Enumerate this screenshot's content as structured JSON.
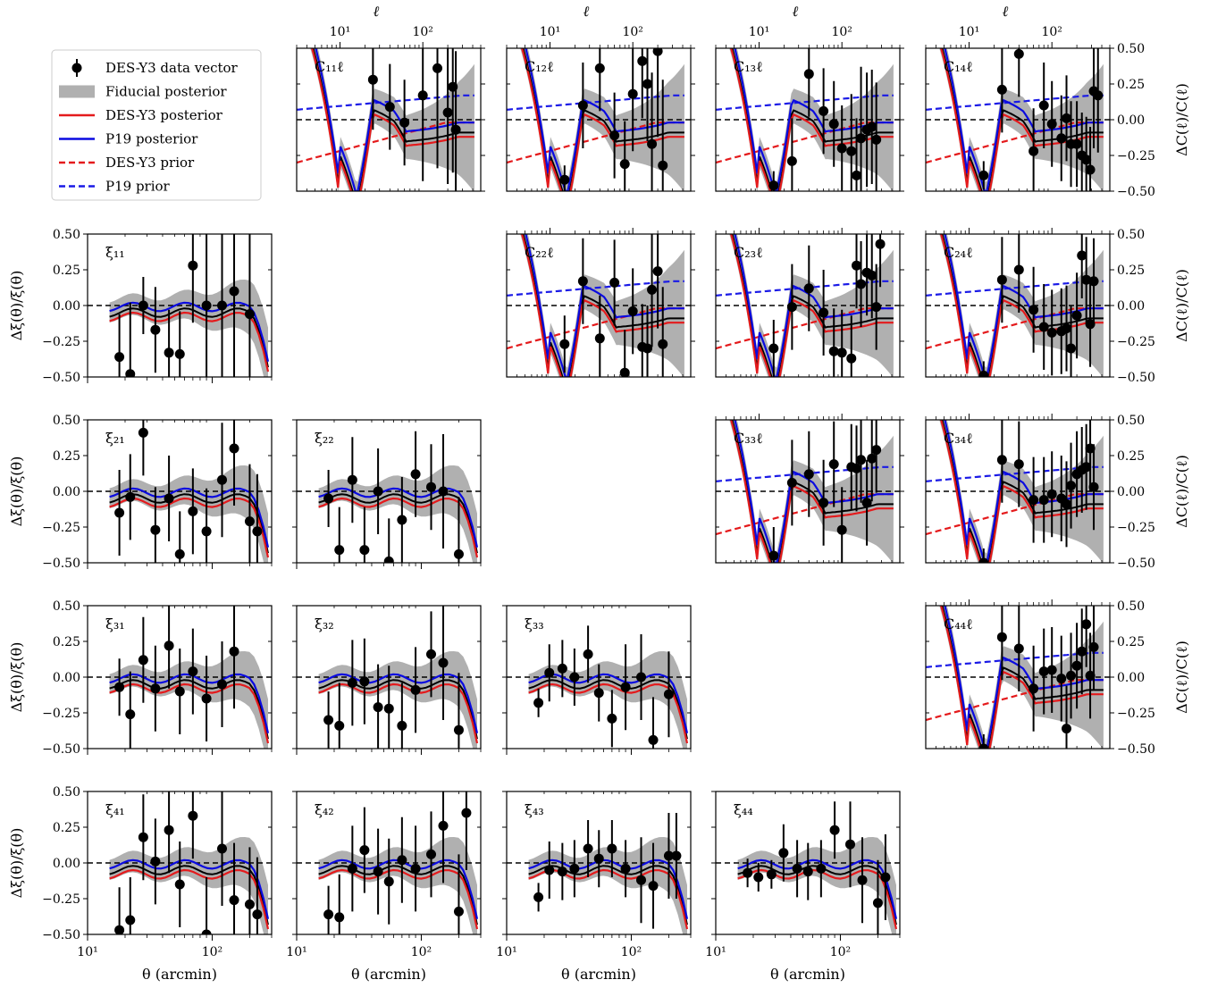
{
  "figure": {
    "colors": {
      "data": "#000000",
      "fiducial": "#b0b0b0",
      "des_post": "#e41a1c",
      "p19_post": "#0a0ae0",
      "des_prior": "#e41a1c",
      "p19_prior": "#1a1ae6"
    }
  },
  "legend": {
    "entries": [
      {
        "key": "data",
        "label": "DES-Y3 data vector"
      },
      {
        "key": "fiducial",
        "label": "Fiducial posterior"
      },
      {
        "key": "des_post",
        "label": "DES-Y3 posterior"
      },
      {
        "key": "p19_post",
        "label": "P19 posterior"
      },
      {
        "key": "des_prior",
        "label": "DES-Y3 prior"
      },
      {
        "key": "p19_prior",
        "label": "P19 prior"
      }
    ]
  },
  "axes_text": {
    "xi_ylabel": "Δξ(θ)/ξ(θ)",
    "cl_ylabel": "ΔC(ℓ)/C(ℓ)",
    "xi_xlabel": "θ (arcmin)",
    "cl_xlabel": "ℓ",
    "y_ticks": [
      "0.50",
      "0.25",
      "0.00",
      "−0.25",
      "−0.50"
    ],
    "x_ticks": [
      "10¹",
      "10²"
    ]
  },
  "chart_data": {
    "type": "scatter",
    "ylim": [
      -0.5,
      0.5
    ],
    "xi_xlim": [
      10,
      300
    ],
    "cl_xlim": [
      3,
      500
    ],
    "panels": [
      {
        "kind": "cl",
        "label": "C₁₁ℓ",
        "row": 0,
        "col": 1,
        "x": [
          25,
          40,
          60,
          100,
          150,
          200,
          230,
          250
        ],
        "y": [
          0.28,
          0.09,
          -0.02,
          0.17,
          0.36,
          0.05,
          0.23,
          -0.07
        ],
        "err": [
          0.35,
          0.3,
          0.3,
          0.6,
          0.7,
          0.5,
          0.6,
          0.55
        ]
      },
      {
        "kind": "cl",
        "label": "C₁₂ℓ",
        "row": 0,
        "col": 2,
        "x": [
          15,
          25,
          40,
          60,
          80,
          100,
          130,
          150,
          170,
          200,
          230
        ],
        "y": [
          -0.42,
          0.1,
          0.36,
          -0.11,
          -0.31,
          0.18,
          0.41,
          0.25,
          -0.17,
          0.48,
          -0.32
        ],
        "err": [
          0.1,
          0.3,
          0.3,
          0.3,
          0.3,
          0.4,
          0.4,
          0.4,
          0.5,
          0.6,
          0.6
        ]
      },
      {
        "kind": "cl",
        "label": "C₁₃ℓ",
        "row": 0,
        "col": 3,
        "x": [
          15,
          25,
          40,
          60,
          80,
          100,
          130,
          150,
          170,
          200,
          230,
          260
        ],
        "y": [
          -0.46,
          -0.29,
          0.32,
          0.06,
          -0.03,
          -0.2,
          -0.22,
          -0.39,
          -0.13,
          -0.07,
          -0.05,
          -0.14
        ],
        "err": [
          0.1,
          0.3,
          0.3,
          0.3,
          0.3,
          0.3,
          0.4,
          0.4,
          0.5,
          0.4,
          0.4,
          0.4
        ]
      },
      {
        "kind": "cl",
        "label": "C₁₄ℓ",
        "row": 0,
        "col": 4,
        "x": [
          15,
          25,
          40,
          60,
          80,
          100,
          130,
          150,
          170,
          200,
          230,
          260,
          290,
          320,
          360
        ],
        "y": [
          -0.39,
          0.21,
          0.46,
          -0.22,
          0.1,
          -0.03,
          -0.13,
          0.01,
          -0.17,
          -0.17,
          -0.25,
          -0.28,
          -0.35,
          0.2,
          0.17
        ],
        "err": [
          0.1,
          0.3,
          0.3,
          0.3,
          0.3,
          0.3,
          0.3,
          0.3,
          0.3,
          0.3,
          0.3,
          0.3,
          0.3,
          0.4,
          0.4
        ]
      },
      {
        "kind": "xi",
        "label": "ξ₁₁",
        "row": 1,
        "col": 0,
        "x": [
          18,
          22,
          28,
          35,
          45,
          55,
          70,
          90,
          120,
          150,
          200
        ],
        "y": [
          -0.36,
          -0.48,
          0,
          -0.17,
          -0.33,
          -0.34,
          0.28,
          0,
          0,
          0.1,
          -0.06
        ],
        "err": [
          0.3,
          0.5,
          0.2,
          0.3,
          0.3,
          0.3,
          0.4,
          0.5,
          0.6,
          0.6,
          0.6
        ]
      },
      {
        "kind": "cl",
        "label": "C₂₂ℓ",
        "row": 1,
        "col": 2,
        "x": [
          15,
          25,
          40,
          60,
          80,
          100,
          130,
          150,
          170,
          200,
          230
        ],
        "y": [
          -0.27,
          0.17,
          -0.23,
          0.16,
          -0.47,
          -0.04,
          -0.29,
          -0.3,
          0.11,
          0.24,
          -0.27
        ],
        "err": [
          0.2,
          0.3,
          0.3,
          0.3,
          0.3,
          0.3,
          0.3,
          0.3,
          0.4,
          0.4,
          0.4
        ]
      },
      {
        "kind": "cl",
        "label": "C₂₃ℓ",
        "row": 1,
        "col": 3,
        "x": [
          15,
          25,
          40,
          60,
          80,
          100,
          130,
          150,
          170,
          200,
          230,
          260,
          290
        ],
        "y": [
          -0.3,
          -0.01,
          0.12,
          -0.05,
          -0.32,
          -0.33,
          -0.37,
          0.28,
          0.15,
          0.23,
          0.21,
          -0.01,
          0.43
        ],
        "err": [
          0.2,
          0.3,
          0.3,
          0.3,
          0.3,
          0.3,
          0.3,
          0.3,
          0.3,
          0.3,
          0.3,
          0.3,
          0.3
        ]
      },
      {
        "kind": "cl",
        "label": "C₂₄ℓ",
        "row": 1,
        "col": 4,
        "x": [
          15,
          25,
          40,
          60,
          80,
          100,
          130,
          150,
          170,
          200,
          230,
          260,
          290,
          320
        ],
        "y": [
          -0.49,
          0.18,
          0.25,
          -0.03,
          -0.15,
          -0.19,
          -0.18,
          -0.16,
          -0.3,
          -0.07,
          0.35,
          0.18,
          -0.13,
          0.17
        ],
        "err": [
          0.1,
          0.3,
          0.3,
          0.3,
          0.3,
          0.3,
          0.3,
          0.3,
          0.3,
          0.3,
          0.3,
          0.3,
          0.3,
          0.3
        ]
      },
      {
        "kind": "xi",
        "label": "ξ₂₁",
        "row": 2,
        "col": 0,
        "x": [
          18,
          22,
          28,
          35,
          45,
          55,
          70,
          90,
          120,
          150,
          200,
          230
        ],
        "y": [
          -0.15,
          -0.04,
          0.41,
          -0.27,
          -0.05,
          -0.44,
          -0.14,
          -0.28,
          0.08,
          0.3,
          -0.21,
          -0.28
        ],
        "err": [
          0.3,
          0.3,
          0.3,
          0.3,
          0.3,
          0.3,
          0.3,
          0.3,
          0.4,
          0.4,
          0.4,
          0.4
        ]
      },
      {
        "kind": "xi",
        "label": "ξ₂₂",
        "row": 2,
        "col": 1,
        "x": [
          18,
          22,
          28,
          35,
          45,
          55,
          70,
          90,
          120,
          150,
          200
        ],
        "y": [
          -0.05,
          -0.41,
          0.08,
          -0.41,
          0,
          -0.49,
          -0.2,
          0.12,
          0.03,
          0,
          -0.44
        ],
        "err": [
          0.2,
          0.3,
          0.3,
          0.3,
          0.3,
          0.3,
          0.3,
          0.3,
          0.3,
          0.4,
          0.4
        ]
      },
      {
        "kind": "cl",
        "label": "C₃₃ℓ",
        "row": 2,
        "col": 3,
        "x": [
          15,
          25,
          40,
          60,
          80,
          100,
          130,
          150,
          170,
          200,
          230,
          260
        ],
        "y": [
          -0.45,
          0.06,
          0.12,
          -0.08,
          0.19,
          -0.27,
          0.17,
          0.16,
          0.22,
          -0.08,
          0.23,
          0.29
        ],
        "err": [
          0.2,
          0.3,
          0.3,
          0.3,
          0.3,
          0.3,
          0.3,
          0.3,
          0.3,
          0.3,
          0.3,
          0.3
        ]
      },
      {
        "kind": "cl",
        "label": "C₃₄ℓ",
        "row": 2,
        "col": 4,
        "x": [
          15,
          25,
          40,
          60,
          80,
          100,
          130,
          150,
          170,
          200,
          230,
          260,
          290,
          320
        ],
        "y": [
          -0.5,
          0.22,
          0.19,
          -0.06,
          -0.06,
          -0.02,
          -0.05,
          -0.09,
          0.04,
          0.12,
          0.15,
          0.17,
          0.3,
          0.03
        ],
        "err": [
          0.1,
          0.3,
          0.3,
          0.3,
          0.3,
          0.3,
          0.3,
          0.3,
          0.3,
          0.3,
          0.3,
          0.3,
          0.3,
          0.3
        ]
      },
      {
        "kind": "xi",
        "label": "ξ₃₁",
        "row": 3,
        "col": 0,
        "x": [
          18,
          22,
          28,
          35,
          45,
          55,
          70,
          90,
          120,
          150
        ],
        "y": [
          -0.07,
          -0.26,
          0.12,
          -0.08,
          0.22,
          -0.1,
          0.04,
          -0.15,
          -0.05,
          0.18
        ],
        "err": [
          0.2,
          0.3,
          0.3,
          0.3,
          0.3,
          0.3,
          0.3,
          0.3,
          0.3,
          0.4
        ]
      },
      {
        "kind": "xi",
        "label": "ξ₃₂",
        "row": 3,
        "col": 1,
        "x": [
          18,
          22,
          28,
          35,
          45,
          55,
          70,
          90,
          120,
          150,
          200
        ],
        "y": [
          -0.3,
          -0.34,
          -0.04,
          -0.03,
          -0.21,
          -0.22,
          -0.34,
          -0.09,
          0.16,
          0.1,
          -0.37
        ],
        "err": [
          0.2,
          0.3,
          0.3,
          0.3,
          0.3,
          0.3,
          0.3,
          0.3,
          0.3,
          0.4,
          0.4
        ]
      },
      {
        "kind": "xi",
        "label": "ξ₃₃",
        "row": 3,
        "col": 2,
        "x": [
          18,
          22,
          28,
          35,
          45,
          55,
          70,
          90,
          120,
          150,
          200
        ],
        "y": [
          -0.18,
          0.03,
          0.06,
          0,
          0.16,
          -0.11,
          -0.29,
          -0.07,
          0,
          -0.44,
          -0.12
        ],
        "err": [
          0.1,
          0.2,
          0.2,
          0.2,
          0.2,
          0.2,
          0.2,
          0.3,
          0.3,
          0.3,
          0.3
        ]
      },
      {
        "kind": "cl",
        "label": "C₄₄ℓ",
        "row": 3,
        "col": 4,
        "x": [
          15,
          25,
          40,
          60,
          80,
          100,
          130,
          150,
          170,
          200,
          230,
          260,
          290,
          320
        ],
        "y": [
          -0.5,
          0.28,
          0.2,
          -0.08,
          0.04,
          0.05,
          -0.01,
          -0.36,
          0.01,
          0.08,
          0.18,
          0.37,
          0.01,
          0.21
        ],
        "err": [
          0.1,
          0.3,
          0.3,
          0.3,
          0.3,
          0.3,
          0.3,
          0.3,
          0.3,
          0.3,
          0.3,
          0.3,
          0.3,
          0.3
        ]
      },
      {
        "kind": "xi",
        "label": "ξ₄₁",
        "row": 4,
        "col": 0,
        "x": [
          18,
          22,
          28,
          35,
          45,
          55,
          70,
          90,
          120,
          150,
          200,
          230
        ],
        "y": [
          -0.47,
          -0.4,
          0.18,
          0.01,
          0.23,
          -0.15,
          0.33,
          -0.5,
          0.1,
          -0.26,
          -0.29,
          -0.36
        ],
        "err": [
          0.3,
          0.3,
          0.3,
          0.3,
          0.3,
          0.3,
          0.3,
          0.4,
          0.4,
          0.4,
          0.4,
          0.4
        ]
      },
      {
        "kind": "xi",
        "label": "ξ₄₂",
        "row": 4,
        "col": 1,
        "x": [
          18,
          22,
          28,
          35,
          45,
          55,
          70,
          90,
          120,
          150,
          200,
          230
        ],
        "y": [
          -0.36,
          -0.38,
          -0.04,
          0.09,
          -0.06,
          -0.13,
          0.02,
          -0.04,
          0.06,
          0.26,
          -0.34,
          0.35
        ],
        "err": [
          0.2,
          0.3,
          0.3,
          0.3,
          0.3,
          0.3,
          0.3,
          0.3,
          0.3,
          0.4,
          0.4,
          0.4
        ]
      },
      {
        "kind": "xi",
        "label": "ξ₄₃",
        "row": 4,
        "col": 2,
        "x": [
          18,
          22,
          28,
          35,
          45,
          55,
          70,
          90,
          120,
          150,
          200,
          230
        ],
        "y": [
          -0.24,
          -0.05,
          -0.06,
          -0.04,
          0.1,
          0.03,
          0.1,
          -0.04,
          -0.12,
          -0.16,
          0.05,
          0.05
        ],
        "err": [
          0.1,
          0.2,
          0.2,
          0.2,
          0.2,
          0.2,
          0.2,
          0.2,
          0.3,
          0.3,
          0.3,
          0.3
        ]
      },
      {
        "kind": "xi",
        "label": "ξ₄₄",
        "row": 4,
        "col": 3,
        "x": [
          18,
          22,
          28,
          35,
          45,
          55,
          70,
          90,
          120,
          150,
          200,
          230
        ],
        "y": [
          -0.07,
          -0.1,
          -0.08,
          0.07,
          -0.04,
          -0.06,
          -0.04,
          0.23,
          0.13,
          -0.12,
          -0.28,
          -0.1
        ],
        "err": [
          0.1,
          0.1,
          0.1,
          0.2,
          0.2,
          0.2,
          0.2,
          0.2,
          0.3,
          0.3,
          0.3,
          0.3
        ]
      }
    ]
  }
}
